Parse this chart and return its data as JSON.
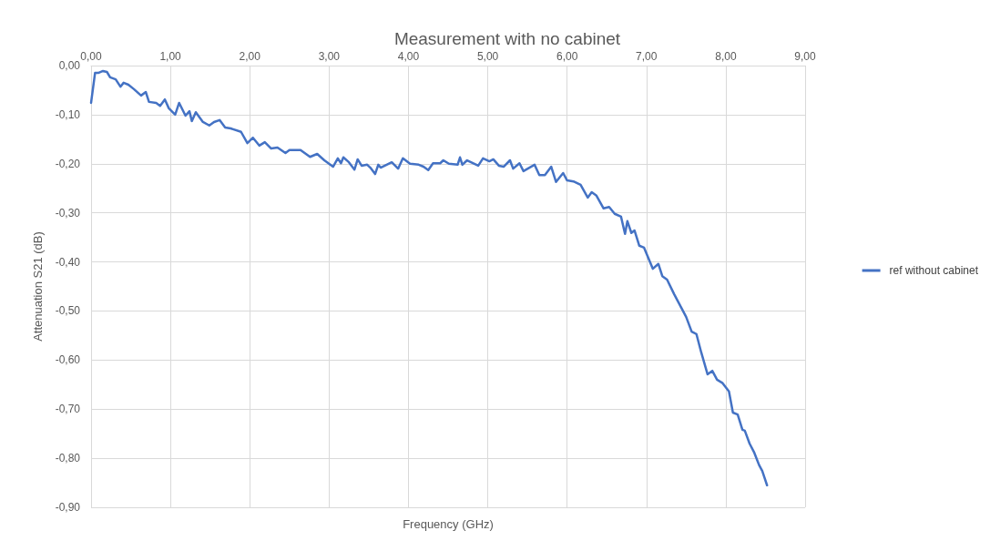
{
  "chart_data": {
    "type": "line",
    "title": "Measurement with no cabinet",
    "xlabel": "Frequency (GHz)",
    "ylabel": "Attenuation S21 (dB)",
    "xlim": [
      0,
      9
    ],
    "ylim": [
      -0.9,
      0
    ],
    "xticks": [
      {
        "value": 0,
        "label": "0,00"
      },
      {
        "value": 1,
        "label": "1,00"
      },
      {
        "value": 2,
        "label": "2,00"
      },
      {
        "value": 3,
        "label": "3,00"
      },
      {
        "value": 4,
        "label": "4,00"
      },
      {
        "value": 5,
        "label": "5,00"
      },
      {
        "value": 6,
        "label": "6,00"
      },
      {
        "value": 7,
        "label": "7,00"
      },
      {
        "value": 8,
        "label": "8,00"
      },
      {
        "value": 9,
        "label": "9,00"
      }
    ],
    "yticks": [
      {
        "value": -0.9,
        "label": "-0,90"
      },
      {
        "value": -0.8,
        "label": "-0,80"
      },
      {
        "value": -0.7,
        "label": "-0,70"
      },
      {
        "value": -0.6,
        "label": "-0,60"
      },
      {
        "value": -0.5,
        "label": "-0,50"
      },
      {
        "value": -0.4,
        "label": "-0,40"
      },
      {
        "value": -0.3,
        "label": "-0,30"
      },
      {
        "value": -0.2,
        "label": "-0,20"
      },
      {
        "value": -0.1,
        "label": "-0,10"
      },
      {
        "value": 0,
        "label": "0,00"
      }
    ],
    "grid": true,
    "legend": "right",
    "marker": "none",
    "line_style": "solid",
    "series": [
      {
        "name": "ref without cabinet",
        "color": "#4472c4",
        "x": [
          0,
          0.05,
          0.09,
          0.15,
          0.2,
          0.24,
          0.31,
          0.37,
          0.41,
          0.47,
          0.54,
          0.63,
          0.69,
          0.73,
          0.82,
          0.87,
          0.93,
          0.98,
          1.06,
          1.11,
          1.19,
          1.24,
          1.27,
          1.32,
          1.41,
          1.49,
          1.55,
          1.62,
          1.69,
          1.76,
          1.89,
          1.97,
          2.04,
          2.12,
          2.19,
          2.27,
          2.35,
          2.45,
          2.5,
          2.64,
          2.76,
          2.85,
          2.94,
          3.05,
          3.11,
          3.15,
          3.18,
          3.25,
          3.32,
          3.36,
          3.41,
          3.48,
          3.52,
          3.58,
          3.62,
          3.65,
          3.79,
          3.87,
          3.93,
          4.02,
          4.13,
          4.19,
          4.25,
          4.31,
          4.4,
          4.44,
          4.51,
          4.62,
          4.65,
          4.68,
          4.74,
          4.88,
          4.94,
          5.02,
          5.07,
          5.14,
          5.2,
          5.28,
          5.32,
          5.4,
          5.45,
          5.59,
          5.65,
          5.72,
          5.8,
          5.86,
          5.95,
          6.0,
          6.08,
          6.17,
          6.26,
          6.31,
          6.37,
          6.46,
          6.53,
          6.6,
          6.68,
          6.73,
          6.76,
          6.81,
          6.85,
          6.91,
          6.97,
          7.08,
          7.15,
          7.2,
          7.26,
          7.35,
          7.5,
          7.57,
          7.63,
          7.69,
          7.77,
          7.83,
          7.89,
          7.96,
          8.04,
          8.09,
          8.15,
          8.21,
          8.24,
          8.3,
          8.36,
          8.42,
          8.46,
          8.52
        ],
        "values": [
          -0.076,
          -0.015,
          -0.015,
          -0.011,
          -0.013,
          -0.024,
          -0.028,
          -0.043,
          -0.035,
          -0.039,
          -0.048,
          -0.061,
          -0.054,
          -0.074,
          -0.076,
          -0.082,
          -0.069,
          -0.087,
          -0.1,
          -0.076,
          -0.102,
          -0.093,
          -0.113,
          -0.095,
          -0.115,
          -0.122,
          -0.115,
          -0.111,
          -0.126,
          -0.128,
          -0.135,
          -0.158,
          -0.147,
          -0.163,
          -0.156,
          -0.169,
          -0.167,
          -0.178,
          -0.172,
          -0.172,
          -0.186,
          -0.18,
          -0.193,
          -0.206,
          -0.189,
          -0.199,
          -0.187,
          -0.197,
          -0.212,
          -0.191,
          -0.204,
          -0.202,
          -0.208,
          -0.221,
          -0.202,
          -0.208,
          -0.197,
          -0.21,
          -0.189,
          -0.2,
          -0.202,
          -0.206,
          -0.213,
          -0.199,
          -0.199,
          -0.193,
          -0.2,
          -0.202,
          -0.187,
          -0.202,
          -0.193,
          -0.204,
          -0.189,
          -0.195,
          -0.191,
          -0.204,
          -0.206,
          -0.193,
          -0.21,
          -0.199,
          -0.215,
          -0.202,
          -0.223,
          -0.223,
          -0.206,
          -0.237,
          -0.219,
          -0.234,
          -0.236,
          -0.243,
          -0.269,
          -0.258,
          -0.265,
          -0.291,
          -0.288,
          -0.302,
          -0.308,
          -0.343,
          -0.317,
          -0.341,
          -0.336,
          -0.367,
          -0.371,
          -0.414,
          -0.404,
          -0.429,
          -0.436,
          -0.466,
          -0.512,
          -0.542,
          -0.547,
          -0.584,
          -0.629,
          -0.622,
          -0.64,
          -0.647,
          -0.664,
          -0.707,
          -0.711,
          -0.742,
          -0.744,
          -0.77,
          -0.789,
          -0.814,
          -0.826,
          -0.855
        ]
      }
    ]
  }
}
